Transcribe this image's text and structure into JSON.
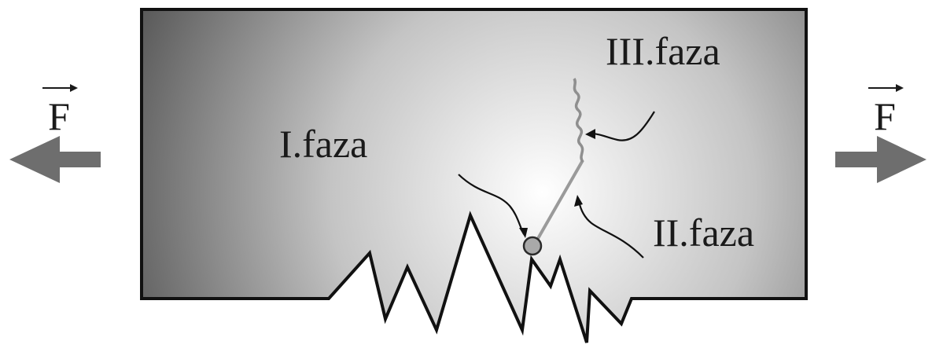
{
  "diagram": {
    "force_label_left": "F",
    "force_label_right": "F",
    "phase_1_label": "I.faza",
    "phase_2_label": "II.faza",
    "phase_3_label": "III.faza"
  },
  "colors": {
    "plate_edge": "#3a3a3a",
    "plate_center": "#ffffff",
    "outline": "#111111",
    "force_arrow": "#6e6e6e",
    "crack_line": "#9a9a9a",
    "nucleus_fill": "#a9a9a9"
  },
  "icons": {
    "left_force": "arrow-left-icon",
    "right_force": "arrow-right-icon",
    "vector_mark": "vector-arrow-icon"
  }
}
